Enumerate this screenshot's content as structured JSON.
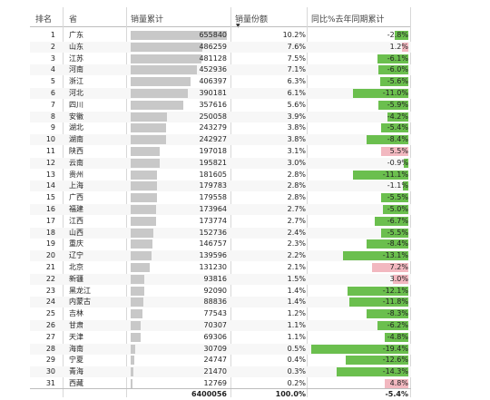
{
  "colors": {
    "sales_bar": "#c8c8c8",
    "yoy_positive": "#6bbf4e",
    "yoy_negative": "#f2b8c0"
  },
  "columns": {
    "rank": "排名",
    "province": "省",
    "sales": "销量累计",
    "share": "销量份额",
    "yoy": "同比%去年同期累计"
  },
  "sales_max": 655840,
  "yoy_max_abs": 19.4,
  "rows": [
    {
      "rank": "1",
      "province": "广东",
      "sales": 655840,
      "sales_label": "655840",
      "share": "10.2%",
      "yoy": -2.8,
      "yoy_label": "-2.8%"
    },
    {
      "rank": "2",
      "province": "山东",
      "sales": 486259,
      "sales_label": "486259",
      "share": "7.6%",
      "yoy": 1.2,
      "yoy_label": "1.2%"
    },
    {
      "rank": "3",
      "province": "江苏",
      "sales": 481128,
      "sales_label": "481128",
      "share": "7.5%",
      "yoy": -6.1,
      "yoy_label": "-6.1%"
    },
    {
      "rank": "4",
      "province": "河南",
      "sales": 452936,
      "sales_label": "452936",
      "share": "7.1%",
      "yoy": -6.0,
      "yoy_label": "-6.0%"
    },
    {
      "rank": "5",
      "province": "浙江",
      "sales": 406397,
      "sales_label": "406397",
      "share": "6.3%",
      "yoy": -5.6,
      "yoy_label": "-5.6%"
    },
    {
      "rank": "6",
      "province": "河北",
      "sales": 390181,
      "sales_label": "390181",
      "share": "6.1%",
      "yoy": -11.0,
      "yoy_label": "-11.0%"
    },
    {
      "rank": "7",
      "province": "四川",
      "sales": 357616,
      "sales_label": "357616",
      "share": "5.6%",
      "yoy": -5.9,
      "yoy_label": "-5.9%"
    },
    {
      "rank": "8",
      "province": "安徽",
      "sales": 250058,
      "sales_label": "250058",
      "share": "3.9%",
      "yoy": -4.2,
      "yoy_label": "-4.2%"
    },
    {
      "rank": "9",
      "province": "湖北",
      "sales": 243279,
      "sales_label": "243279",
      "share": "3.8%",
      "yoy": -5.4,
      "yoy_label": "-5.4%"
    },
    {
      "rank": "10",
      "province": "湖南",
      "sales": 242927,
      "sales_label": "242927",
      "share": "3.8%",
      "yoy": -8.4,
      "yoy_label": "-8.4%"
    },
    {
      "rank": "11",
      "province": "陕西",
      "sales": 197018,
      "sales_label": "197018",
      "share": "3.1%",
      "yoy": 5.5,
      "yoy_label": "5.5%"
    },
    {
      "rank": "12",
      "province": "云南",
      "sales": 195821,
      "sales_label": "195821",
      "share": "3.0%",
      "yoy": -0.9,
      "yoy_label": "-0.9%"
    },
    {
      "rank": "13",
      "province": "贵州",
      "sales": 181605,
      "sales_label": "181605",
      "share": "2.8%",
      "yoy": -11.1,
      "yoy_label": "-11.1%"
    },
    {
      "rank": "14",
      "province": "上海",
      "sales": 179783,
      "sales_label": "179783",
      "share": "2.8%",
      "yoy": -1.1,
      "yoy_label": "-1.1%"
    },
    {
      "rank": "15",
      "province": "广西",
      "sales": 179558,
      "sales_label": "179558",
      "share": "2.8%",
      "yoy": -5.5,
      "yoy_label": "-5.5%"
    },
    {
      "rank": "16",
      "province": "福建",
      "sales": 173964,
      "sales_label": "173964",
      "share": "2.7%",
      "yoy": -5.0,
      "yoy_label": "-5.0%"
    },
    {
      "rank": "17",
      "province": "江西",
      "sales": 173774,
      "sales_label": "173774",
      "share": "2.7%",
      "yoy": -6.7,
      "yoy_label": "-6.7%"
    },
    {
      "rank": "18",
      "province": "山西",
      "sales": 152736,
      "sales_label": "152736",
      "share": "2.4%",
      "yoy": -5.5,
      "yoy_label": "-5.5%"
    },
    {
      "rank": "19",
      "province": "重庆",
      "sales": 146757,
      "sales_label": "146757",
      "share": "2.3%",
      "yoy": -8.4,
      "yoy_label": "-8.4%"
    },
    {
      "rank": "20",
      "province": "辽宁",
      "sales": 139596,
      "sales_label": "139596",
      "share": "2.2%",
      "yoy": -13.1,
      "yoy_label": "-13.1%"
    },
    {
      "rank": "21",
      "province": "北京",
      "sales": 131230,
      "sales_label": "131230",
      "share": "2.1%",
      "yoy": 7.2,
      "yoy_label": "7.2%"
    },
    {
      "rank": "22",
      "province": "新疆",
      "sales": 93816,
      "sales_label": "93816",
      "share": "1.5%",
      "yoy": 3.0,
      "yoy_label": "3.0%"
    },
    {
      "rank": "23",
      "province": "黑龙江",
      "sales": 92090,
      "sales_label": "92090",
      "share": "1.4%",
      "yoy": -12.1,
      "yoy_label": "-12.1%"
    },
    {
      "rank": "24",
      "province": "内蒙古",
      "sales": 88836,
      "sales_label": "88836",
      "share": "1.4%",
      "yoy": -11.8,
      "yoy_label": "-11.8%"
    },
    {
      "rank": "25",
      "province": "吉林",
      "sales": 77543,
      "sales_label": "77543",
      "share": "1.2%",
      "yoy": -8.3,
      "yoy_label": "-8.3%"
    },
    {
      "rank": "26",
      "province": "甘肃",
      "sales": 70307,
      "sales_label": "70307",
      "share": "1.1%",
      "yoy": -6.2,
      "yoy_label": "-6.2%"
    },
    {
      "rank": "27",
      "province": "天津",
      "sales": 69306,
      "sales_label": "69306",
      "share": "1.1%",
      "yoy": -4.8,
      "yoy_label": "-4.8%"
    },
    {
      "rank": "28",
      "province": "海南",
      "sales": 30709,
      "sales_label": "30709",
      "share": "0.5%",
      "yoy": -19.4,
      "yoy_label": "-19.4%"
    },
    {
      "rank": "29",
      "province": "宁夏",
      "sales": 24747,
      "sales_label": "24747",
      "share": "0.4%",
      "yoy": -12.6,
      "yoy_label": "-12.6%"
    },
    {
      "rank": "30",
      "province": "青海",
      "sales": 21470,
      "sales_label": "21470",
      "share": "0.3%",
      "yoy": -14.3,
      "yoy_label": "-14.3%"
    },
    {
      "rank": "31",
      "province": "西藏",
      "sales": 12769,
      "sales_label": "12769",
      "share": "0.2%",
      "yoy": 4.8,
      "yoy_label": "4.8%"
    }
  ],
  "total": {
    "sales": "6400056",
    "share": "100.0%",
    "yoy": "-5.4%"
  }
}
